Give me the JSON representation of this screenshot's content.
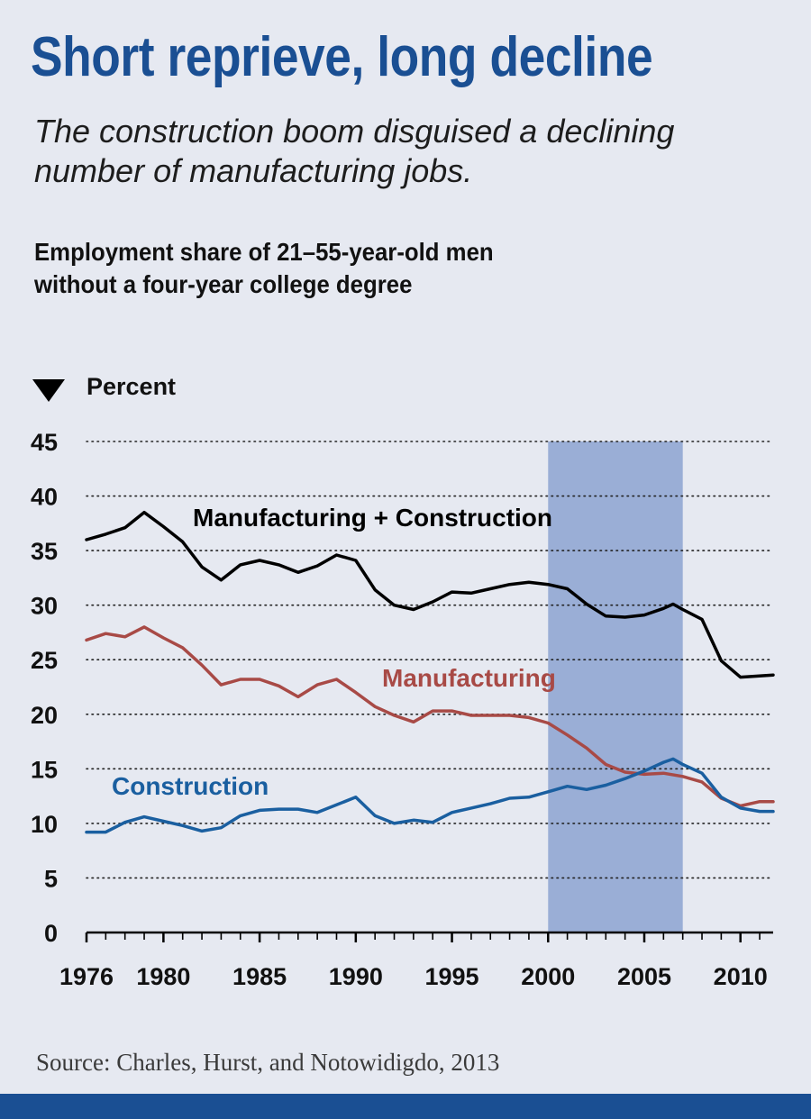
{
  "title": "Short reprieve, long decline",
  "subtitle": "The construction boom disguised a declining number of manufacturing jobs.",
  "chart_heading": "Employment share of 21–55-year-old men without a four-year college degree",
  "source": "Source: Charles, Hurst, and Notowidigdo, 2013",
  "colors": {
    "accent": "#1a4f93",
    "background": "#e6e9f1",
    "recession_band": "#9aaed6",
    "combined": "#000000",
    "manufacturing": "#a84a46",
    "construction": "#1a5fa0"
  },
  "chart_data": {
    "type": "line",
    "ylabel": "Percent",
    "ylim": [
      0,
      45
    ],
    "yticks": [
      0,
      5,
      10,
      15,
      20,
      25,
      30,
      35,
      40,
      45
    ],
    "xlim": [
      1976,
      2011.7
    ],
    "xticks": [
      1976,
      1980,
      1985,
      1990,
      1995,
      2000,
      2005,
      2010
    ],
    "grid": true,
    "highlight_band": [
      2000,
      2007
    ],
    "series": [
      {
        "name": "Manufacturing + Construction",
        "color": "#000000",
        "points": [
          [
            1976,
            36.0
          ],
          [
            1977,
            36.5
          ],
          [
            1978,
            37.1
          ],
          [
            1979,
            38.5
          ],
          [
            1980,
            37.2
          ],
          [
            1981,
            35.8
          ],
          [
            1982,
            33.5
          ],
          [
            1983,
            32.3
          ],
          [
            1984,
            33.7
          ],
          [
            1985,
            34.1
          ],
          [
            1986,
            33.7
          ],
          [
            1987,
            33.0
          ],
          [
            1988,
            33.6
          ],
          [
            1989,
            34.6
          ],
          [
            1990,
            34.1
          ],
          [
            1991,
            31.4
          ],
          [
            1992,
            30.0
          ],
          [
            1993,
            29.6
          ],
          [
            1994,
            30.3
          ],
          [
            1995,
            31.2
          ],
          [
            1996,
            31.1
          ],
          [
            1997,
            31.5
          ],
          [
            1998,
            31.9
          ],
          [
            1999,
            32.1
          ],
          [
            2000,
            31.9
          ],
          [
            2001,
            31.5
          ],
          [
            2002,
            30.1
          ],
          [
            2003,
            29.0
          ],
          [
            2004,
            28.9
          ],
          [
            2005,
            29.1
          ],
          [
            2006,
            29.7
          ],
          [
            2006.5,
            30.1
          ],
          [
            2007,
            29.6
          ],
          [
            2008,
            28.7
          ],
          [
            2009,
            24.9
          ],
          [
            2010,
            23.4
          ],
          [
            2011.7,
            23.6
          ]
        ]
      },
      {
        "name": "Manufacturing",
        "color": "#a84a46",
        "points": [
          [
            1976,
            26.8
          ],
          [
            1977,
            27.4
          ],
          [
            1978,
            27.1
          ],
          [
            1979,
            28.0
          ],
          [
            1980,
            27.0
          ],
          [
            1981,
            26.1
          ],
          [
            1982,
            24.5
          ],
          [
            1983,
            22.7
          ],
          [
            1984,
            23.2
          ],
          [
            1985,
            23.2
          ],
          [
            1986,
            22.6
          ],
          [
            1987,
            21.6
          ],
          [
            1988,
            22.7
          ],
          [
            1989,
            23.2
          ],
          [
            1990,
            22.0
          ],
          [
            1991,
            20.7
          ],
          [
            1992,
            19.9
          ],
          [
            1993,
            19.3
          ],
          [
            1994,
            20.3
          ],
          [
            1995,
            20.3
          ],
          [
            1996,
            19.9
          ],
          [
            1997,
            19.9
          ],
          [
            1998,
            19.9
          ],
          [
            1999,
            19.7
          ],
          [
            2000,
            19.2
          ],
          [
            2001,
            18.1
          ],
          [
            2002,
            16.9
          ],
          [
            2003,
            15.4
          ],
          [
            2004,
            14.7
          ],
          [
            2005,
            14.5
          ],
          [
            2006,
            14.6
          ],
          [
            2007,
            14.3
          ],
          [
            2008,
            13.8
          ],
          [
            2009,
            12.3
          ],
          [
            2010,
            11.6
          ],
          [
            2011,
            12.0
          ],
          [
            2011.7,
            12.0
          ]
        ]
      },
      {
        "name": "Construction",
        "color": "#1a5fa0",
        "points": [
          [
            1976,
            9.2
          ],
          [
            1977,
            9.2
          ],
          [
            1978,
            10.1
          ],
          [
            1979,
            10.6
          ],
          [
            1980,
            10.2
          ],
          [
            1981,
            9.8
          ],
          [
            1982,
            9.3
          ],
          [
            1983,
            9.6
          ],
          [
            1984,
            10.7
          ],
          [
            1985,
            11.2
          ],
          [
            1986,
            11.3
          ],
          [
            1987,
            11.3
          ],
          [
            1988,
            11.0
          ],
          [
            1989,
            11.7
          ],
          [
            1990,
            12.4
          ],
          [
            1991,
            10.7
          ],
          [
            1992,
            10.0
          ],
          [
            1993,
            10.3
          ],
          [
            1994,
            10.1
          ],
          [
            1995,
            11.0
          ],
          [
            1996,
            11.4
          ],
          [
            1997,
            11.8
          ],
          [
            1998,
            12.3
          ],
          [
            1999,
            12.4
          ],
          [
            2000,
            12.9
          ],
          [
            2001,
            13.4
          ],
          [
            2002,
            13.1
          ],
          [
            2003,
            13.5
          ],
          [
            2004,
            14.1
          ],
          [
            2005,
            14.8
          ],
          [
            2006,
            15.6
          ],
          [
            2006.5,
            15.9
          ],
          [
            2007,
            15.4
          ],
          [
            2008,
            14.6
          ],
          [
            2009,
            12.4
          ],
          [
            2010,
            11.4
          ],
          [
            2011,
            11.1
          ],
          [
            2011.7,
            11.1
          ]
        ]
      }
    ]
  }
}
